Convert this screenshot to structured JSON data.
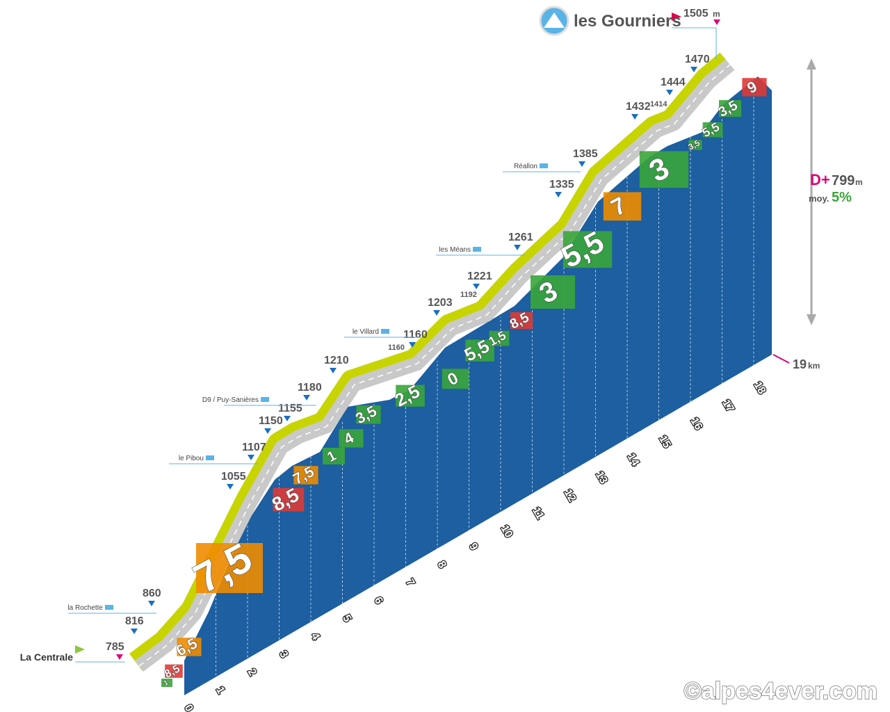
{
  "summit": {
    "name": "les Gourniers",
    "altitude": "1505",
    "unit": "m"
  },
  "start": {
    "name": "La Centrale",
    "altitude": "785"
  },
  "altitudes": [
    "816",
    "860",
    "1055",
    "1107",
    "1150",
    "1155",
    "1180",
    "1210",
    "1160",
    "1160",
    "1203",
    "1192",
    "1221",
    "1261",
    "1335",
    "1385",
    "1432",
    "1414",
    "1444",
    "1470"
  ],
  "places": [
    "la Rochette",
    "le Pibou",
    "D9 / Puy-Sanières",
    "le Villard",
    "les Méans",
    "Réallon"
  ],
  "gradients": [
    {
      "label": "1",
      "color": "#3aa53a"
    },
    {
      "label": "8,5",
      "color": "#e03a35"
    },
    {
      "label": "6,5",
      "color": "#f08c00"
    },
    {
      "label": "7,5",
      "color": "#f08c00"
    },
    {
      "label": "8,5",
      "color": "#e03a35"
    },
    {
      "label": "7,5",
      "color": "#f08c00"
    },
    {
      "label": "1",
      "color": "#3aa53a"
    },
    {
      "label": "4",
      "color": "#3aa53a"
    },
    {
      "label": "3,5",
      "color": "#3aa53a"
    },
    {
      "label": "2,5",
      "color": "#3aa53a"
    },
    {
      "label": "0",
      "color": "#3aa53a"
    },
    {
      "label": "5,5",
      "color": "#3aa53a"
    },
    {
      "label": "1,5",
      "color": "#3aa53a"
    },
    {
      "label": "8,5",
      "color": "#e03a35"
    },
    {
      "label": "3",
      "color": "#3aa53a"
    },
    {
      "label": "5,5",
      "color": "#3aa53a"
    },
    {
      "label": "7",
      "color": "#f08c00"
    },
    {
      "label": "3",
      "color": "#3aa53a"
    },
    {
      "label": "3,5",
      "color": "#3aa53a"
    },
    {
      "label": "5,5",
      "color": "#3aa53a"
    },
    {
      "label": "3,5",
      "color": "#3aa53a"
    },
    {
      "label": "9",
      "color": "#e03a35"
    }
  ],
  "km_ticks": [
    "0",
    "1",
    "2",
    "3",
    "4",
    "5",
    "6",
    "7",
    "8",
    "9",
    "10",
    "11",
    "12",
    "13",
    "14",
    "15",
    "16",
    "17",
    "18"
  ],
  "distance": {
    "value": "19",
    "unit": "km"
  },
  "stats": {
    "gain_label": "D+",
    "gain": "799",
    "gain_unit": "m",
    "avg_label": "moy.",
    "avg": "5%"
  },
  "copyright": "©alpes4ever.com"
}
